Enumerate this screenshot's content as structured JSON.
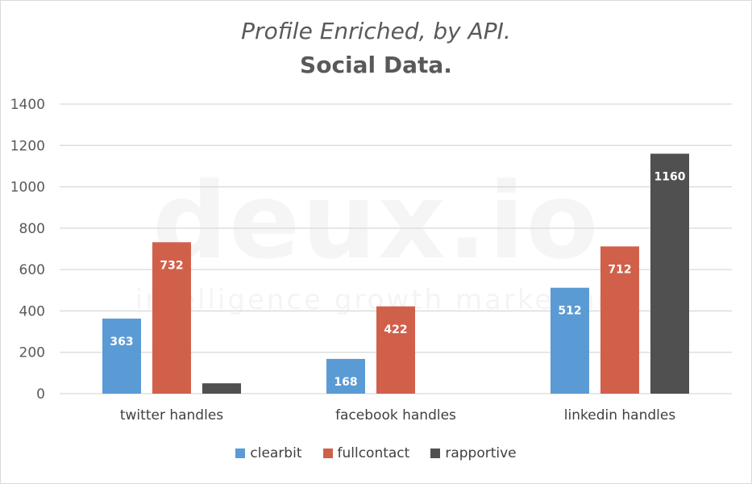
{
  "chart_data": {
    "type": "bar",
    "title": "Profile Enriched, by API.",
    "subtitle": "Social Data.",
    "categories": [
      "twitter handles",
      "facebook handles",
      "linkedin handles"
    ],
    "series": [
      {
        "name": "clearbit",
        "color": "#5b9bd5",
        "values": [
          363,
          168,
          512
        ],
        "labels": [
          "363",
          "168",
          "512"
        ]
      },
      {
        "name": "fullcontact",
        "color": "#d1604b",
        "values": [
          732,
          422,
          712
        ],
        "labels": [
          "732",
          "422",
          "712"
        ]
      },
      {
        "name": "rapportive",
        "color": "#505050",
        "values": [
          50,
          0,
          1160
        ],
        "labels": [
          "",
          "",
          "1160"
        ]
      }
    ],
    "ylim": [
      0,
      1400
    ],
    "yticks": [
      0,
      200,
      400,
      600,
      800,
      1000,
      1200,
      1400
    ],
    "grid": true,
    "legend_position": "bottom",
    "xlabel": "",
    "ylabel": ""
  },
  "watermark": {
    "main": "deux.io",
    "tagline": "intelligence growth marketing"
  }
}
